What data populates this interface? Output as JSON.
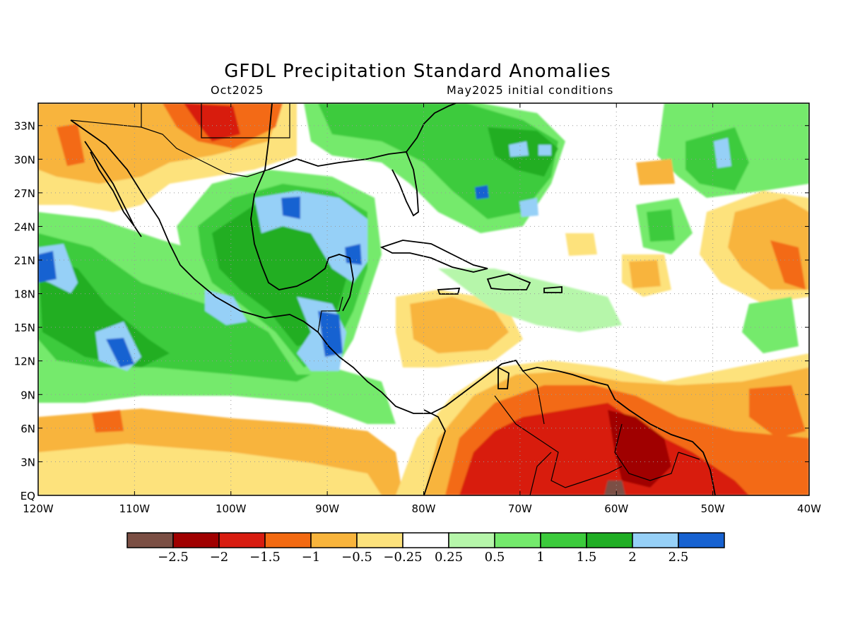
{
  "title": "GFDL Precipitation Standard Anomalies",
  "subtitle_left": "Oct2025",
  "subtitle_right": "May2025 initial conditions",
  "map": {
    "lon_range": [
      -120,
      -40
    ],
    "lat_range": [
      0,
      35
    ],
    "lat_labels": [
      {
        "value": 0,
        "label": "EQ"
      },
      {
        "value": 3,
        "label": "3N"
      },
      {
        "value": 6,
        "label": "6N"
      },
      {
        "value": 9,
        "label": "9N"
      },
      {
        "value": 12,
        "label": "12N"
      },
      {
        "value": 15,
        "label": "15N"
      },
      {
        "value": 18,
        "label": "18N"
      },
      {
        "value": 21,
        "label": "21N"
      },
      {
        "value": 24,
        "label": "24N"
      },
      {
        "value": 27,
        "label": "27N"
      },
      {
        "value": 30,
        "label": "30N"
      },
      {
        "value": 33,
        "label": "33N"
      }
    ],
    "lon_labels": [
      {
        "value": -120,
        "label": "120W"
      },
      {
        "value": -110,
        "label": "110W"
      },
      {
        "value": -100,
        "label": "100W"
      },
      {
        "value": -90,
        "label": "90W"
      },
      {
        "value": -80,
        "label": "80W"
      },
      {
        "value": -70,
        "label": "70W"
      },
      {
        "value": -60,
        "label": "60W"
      },
      {
        "value": -50,
        "label": "50W"
      },
      {
        "value": -40,
        "label": "40W"
      }
    ],
    "grid": "dotted"
  },
  "colorbar": {
    "colors": [
      "#7b4f44",
      "#a00000",
      "#d81c10",
      "#f36a12",
      "#f8b43c",
      "#fde27c",
      "#ffffff",
      "#b6f6aa",
      "#74ea6c",
      "#3ccb3c",
      "#20ae24",
      "#96d0f7",
      "#1762d1"
    ],
    "labels": [
      "−2.5",
      "−2",
      "−1.5",
      "−1",
      "−0.5",
      "−0.25",
      "0.25",
      "0.5",
      "1",
      "1.5",
      "2",
      "2.5"
    ]
  }
}
